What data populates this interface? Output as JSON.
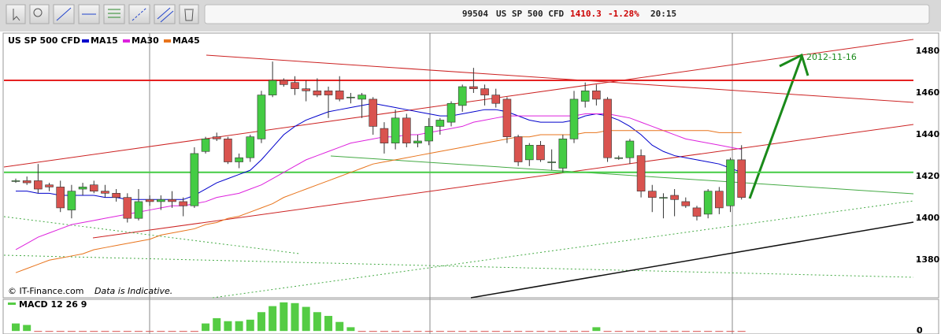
{
  "header": {
    "code": "99504",
    "symbol": "US SP 500 CFD",
    "price": "1410.3",
    "change": "-1.28%",
    "time": "20:15"
  },
  "footer": {
    "copyright": "© IT-Finance.com",
    "disclaimer": "Data is Indicative."
  },
  "chart_data": [
    {
      "type": "candlestick",
      "title": "US SP 500 CFD",
      "open": [
        1418,
        1418,
        1418,
        1416,
        1415,
        1404,
        1414,
        1416,
        1413,
        1412,
        1410,
        1400,
        1409,
        1408,
        1409,
        1408,
        1406,
        1432,
        1439,
        1438,
        1427,
        1429,
        1438,
        1459,
        1466,
        1465,
        1462,
        1461,
        1461,
        1461,
        1458,
        1457,
        1457,
        1443,
        1436,
        1448,
        1436,
        1437,
        1444,
        1446,
        1454,
        1463,
        1462,
        1459,
        1457,
        1439,
        1428,
        1435,
        1427,
        1424,
        1438,
        1456,
        1461,
        1457,
        1429,
        1429,
        1430,
        1413,
        1410,
        1411,
        1408,
        1405,
        1402,
        1413,
        1406,
        1428
      ],
      "high": [
        1419,
        1420,
        1426,
        1417,
        1418,
        1416,
        1417,
        1418,
        1416,
        1414,
        1412,
        1414,
        1411,
        1411,
        1413,
        1410,
        1434,
        1439,
        1441,
        1439,
        1431,
        1440,
        1461,
        1475,
        1467,
        1468,
        1466,
        1467,
        1463,
        1468,
        1460,
        1460,
        1458,
        1446,
        1452,
        1450,
        1440,
        1448,
        1448,
        1456,
        1464,
        1472,
        1464,
        1462,
        1458,
        1440,
        1436,
        1437,
        1433,
        1440,
        1461,
        1465,
        1464,
        1458,
        1430,
        1438,
        1433,
        1416,
        1412,
        1414,
        1410,
        1406,
        1414,
        1415,
        1429,
        1435
      ],
      "low": [
        1417,
        1416,
        1412,
        1413,
        1403,
        1400,
        1411,
        1412,
        1410,
        1408,
        1398,
        1399,
        1406,
        1404,
        1405,
        1401,
        1405,
        1431,
        1437,
        1426,
        1424,
        1427,
        1436,
        1458,
        1463,
        1459,
        1456,
        1458,
        1448,
        1456,
        1455,
        1448,
        1440,
        1431,
        1433,
        1434,
        1434,
        1435,
        1440,
        1444,
        1451,
        1460,
        1454,
        1453,
        1436,
        1425,
        1425,
        1427,
        1423,
        1422,
        1436,
        1453,
        1454,
        1427,
        1428,
        1426,
        1410,
        1403,
        1400,
        1401,
        1405,
        1399,
        1400,
        1402,
        1403,
        1409
      ],
      "close": [
        1418,
        1417,
        1414,
        1415,
        1405,
        1413,
        1415,
        1413,
        1412,
        1410,
        1400,
        1408,
        1408,
        1409,
        1408,
        1406,
        1431,
        1438,
        1438,
        1427,
        1429,
        1439,
        1459,
        1466,
        1464,
        1462,
        1461,
        1459,
        1459,
        1457,
        1458,
        1459,
        1444,
        1436,
        1448,
        1436,
        1437,
        1444,
        1447,
        1455,
        1463,
        1462,
        1459,
        1455,
        1439,
        1427,
        1435,
        1428,
        1427,
        1438,
        1457,
        1461,
        1457,
        1429,
        1429,
        1437,
        1413,
        1410,
        1410,
        1409,
        1406,
        1401,
        1413,
        1405,
        1428,
        1410
      ],
      "up_color": "#44cc44",
      "down_color": "#d9534f",
      "ma_series": [
        {
          "name": "MA15",
          "color": "#0000cc",
          "values": [
            1413,
            1413,
            1412,
            1412,
            1411,
            1411,
            1411,
            1411,
            1410,
            1410,
            1409,
            1409,
            1409,
            1409,
            1409,
            1409,
            1411,
            1414,
            1417,
            1419,
            1421,
            1423,
            1428,
            1434,
            1440,
            1444,
            1447,
            1449,
            1451,
            1452,
            1453,
            1454,
            1455,
            1454,
            1453,
            1452,
            1451,
            1450,
            1449,
            1449,
            1450,
            1451,
            1452,
            1452,
            1451,
            1449,
            1447,
            1446,
            1446,
            1446,
            1447,
            1449,
            1450,
            1449,
            1447,
            1444,
            1440,
            1435,
            1432,
            1430,
            1429,
            1428,
            1427,
            1426,
            1424,
            1422
          ]
        },
        {
          "name": "MA30",
          "color": "#dd22dd",
          "values": [
            1385,
            1388,
            1391,
            1393,
            1395,
            1397,
            1398,
            1399,
            1400,
            1401,
            1402,
            1403,
            1404,
            1405,
            1406,
            1406,
            1407,
            1408,
            1410,
            1411,
            1412,
            1414,
            1416,
            1419,
            1422,
            1425,
            1428,
            1430,
            1432,
            1434,
            1436,
            1437,
            1438,
            1439,
            1439,
            1440,
            1440,
            1441,
            1442,
            1443,
            1444,
            1446,
            1447,
            1448,
            1449,
            1449,
            1449,
            1449,
            1449,
            1449,
            1449,
            1450,
            1450,
            1450,
            1449,
            1448,
            1446,
            1444,
            1442,
            1440,
            1438,
            1437,
            1436,
            1435,
            1434,
            1433
          ]
        },
        {
          "name": "MA45",
          "color": "#e8741c",
          "values": [
            1374,
            1376,
            1378,
            1380,
            1381,
            1382,
            1383,
            1385,
            1386,
            1387,
            1388,
            1389,
            1390,
            1392,
            1393,
            1394,
            1395,
            1397,
            1398,
            1400,
            1401,
            1403,
            1405,
            1407,
            1410,
            1412,
            1414,
            1416,
            1418,
            1420,
            1422,
            1424,
            1426,
            1427,
            1428,
            1429,
            1430,
            1431,
            1432,
            1433,
            1434,
            1435,
            1436,
            1437,
            1438,
            1439,
            1439,
            1440,
            1440,
            1440,
            1440,
            1441,
            1441,
            1442,
            1442,
            1442,
            1442,
            1442,
            1442,
            1442,
            1442,
            1442,
            1442,
            1441,
            1441,
            1441
          ]
        }
      ],
      "hlines": [
        {
          "value": 1466,
          "color": "#e52222"
        },
        {
          "value": 1422,
          "color": "#44cc44"
        }
      ],
      "annotation": {
        "text": "2012-11-16",
        "color": "#1a8a1a"
      },
      "ylim": [
        1362,
        1487.5
      ],
      "yticks": [
        1380,
        1400,
        1420,
        1440,
        1460,
        1480
      ]
    },
    {
      "type": "bar",
      "title": "MACD 12 26 9",
      "values": [
        10,
        8,
        -1,
        -1,
        -1,
        -1,
        -1,
        -1,
        -1,
        -1,
        -1,
        -1,
        -1,
        -1,
        -1,
        -1,
        -1,
        10,
        17,
        13,
        13,
        15,
        25,
        33,
        38,
        37,
        32,
        25,
        20,
        12,
        5,
        -1,
        -1,
        -1,
        -1,
        -1,
        -1,
        -1,
        -1,
        -1,
        -1,
        -1,
        -1,
        -1,
        -1,
        -1,
        -1,
        -1,
        -1,
        -1,
        -1,
        -1,
        5,
        -1,
        -1,
        -1,
        -1,
        -1,
        -1,
        -1,
        -1,
        -1,
        -1,
        -1,
        -1,
        -1
      ],
      "color": "#55cc44",
      "negative_color": "#d9534f",
      "ylim": [
        -4,
        42
      ],
      "yticks": [
        0
      ]
    }
  ]
}
